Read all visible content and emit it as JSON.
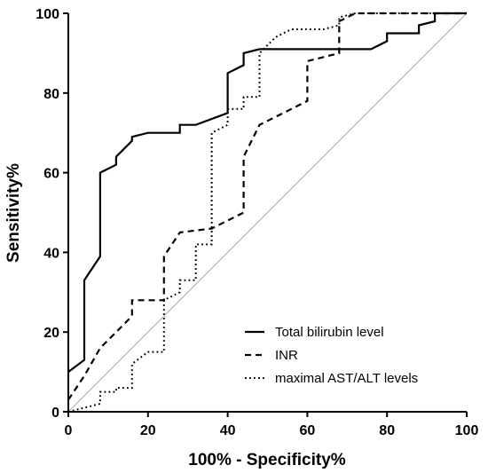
{
  "chart_data": {
    "type": "line",
    "xlabel": "100% - Specificity%",
    "ylabel": "Sensitivity%",
    "xlim": [
      0,
      100
    ],
    "ylim": [
      0,
      100
    ],
    "xticks": [
      0,
      20,
      40,
      60,
      80,
      100
    ],
    "yticks": [
      0,
      20,
      40,
      60,
      80,
      100
    ],
    "legend_position": "bottom-right",
    "reference_line": {
      "from": [
        0,
        0
      ],
      "to": [
        100,
        100
      ],
      "color": "#aaaaaa"
    },
    "series": [
      {
        "name": "Total bilirubin level",
        "style": "solid",
        "color": "#000000",
        "points": [
          [
            0,
            10
          ],
          [
            4,
            13
          ],
          [
            4,
            33
          ],
          [
            8,
            39
          ],
          [
            8,
            60
          ],
          [
            12,
            62
          ],
          [
            12,
            64
          ],
          [
            16,
            68
          ],
          [
            16,
            69
          ],
          [
            20,
            70
          ],
          [
            28,
            70
          ],
          [
            28,
            72
          ],
          [
            32,
            72
          ],
          [
            40,
            75
          ],
          [
            40,
            85
          ],
          [
            42,
            86
          ],
          [
            44,
            87
          ],
          [
            44,
            90
          ],
          [
            48,
            91
          ],
          [
            76,
            91
          ],
          [
            80,
            93
          ],
          [
            80,
            95
          ],
          [
            88,
            95
          ],
          [
            88,
            97
          ],
          [
            92,
            98
          ],
          [
            92,
            100
          ],
          [
            100,
            100
          ]
        ]
      },
      {
        "name": "INR",
        "style": "dashed",
        "color": "#000000",
        "points": [
          [
            0,
            3
          ],
          [
            4,
            9
          ],
          [
            8,
            16
          ],
          [
            12,
            20
          ],
          [
            16,
            24
          ],
          [
            16,
            28
          ],
          [
            24,
            28
          ],
          [
            24,
            39
          ],
          [
            28,
            45
          ],
          [
            36,
            46
          ],
          [
            40,
            48
          ],
          [
            44,
            50
          ],
          [
            44,
            64
          ],
          [
            48,
            72
          ],
          [
            52,
            74
          ],
          [
            56,
            76
          ],
          [
            60,
            78
          ],
          [
            60,
            88
          ],
          [
            68,
            90
          ],
          [
            68,
            98
          ],
          [
            72,
            100
          ],
          [
            100,
            100
          ]
        ]
      },
      {
        "name": "maximal AST/ALT levels",
        "style": "dotted",
        "color": "#000000",
        "points": [
          [
            0,
            0
          ],
          [
            8,
            2
          ],
          [
            8,
            5
          ],
          [
            12,
            5
          ],
          [
            12,
            6
          ],
          [
            16,
            6
          ],
          [
            16,
            12
          ],
          [
            20,
            15
          ],
          [
            24,
            15
          ],
          [
            24,
            28
          ],
          [
            28,
            30
          ],
          [
            28,
            33
          ],
          [
            32,
            33
          ],
          [
            32,
            42
          ],
          [
            36,
            42
          ],
          [
            36,
            70
          ],
          [
            40,
            72
          ],
          [
            40,
            76
          ],
          [
            44,
            76
          ],
          [
            44,
            79
          ],
          [
            48,
            79
          ],
          [
            48,
            90
          ],
          [
            52,
            94
          ],
          [
            56,
            96
          ],
          [
            64,
            96
          ],
          [
            68,
            97
          ],
          [
            68,
            99
          ],
          [
            72,
            100
          ],
          [
            100,
            100
          ]
        ]
      }
    ]
  }
}
